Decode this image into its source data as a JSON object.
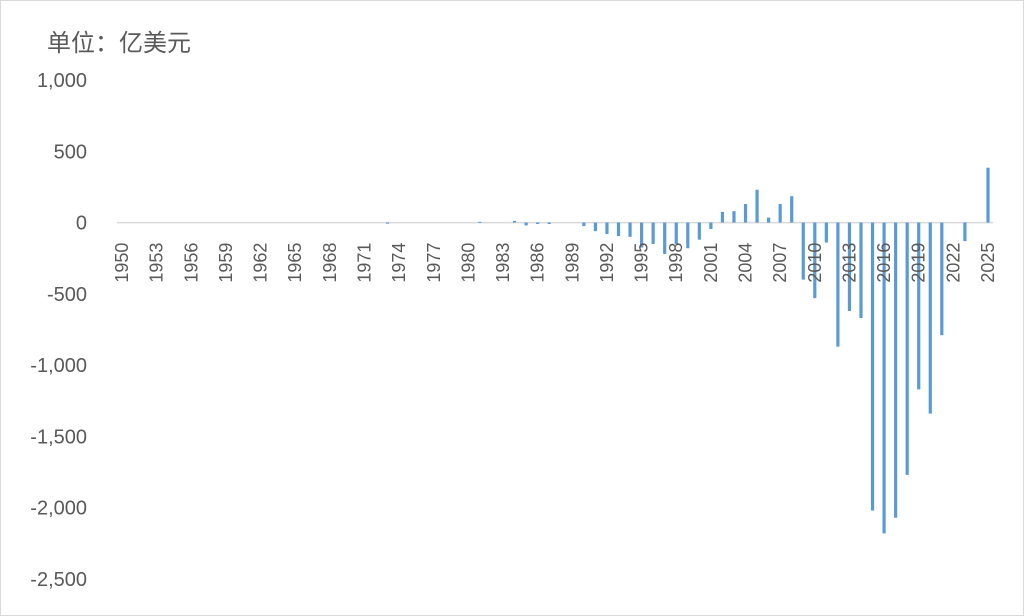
{
  "chart_data": {
    "type": "bar",
    "unit_label": "单位：亿美元",
    "xlabel": "",
    "ylabel": "",
    "ylim": [
      -2500,
      1000
    ],
    "y_ticks": [
      1000,
      500,
      0,
      -500,
      -1000,
      -1500,
      -2000,
      -2500
    ],
    "y_tick_labels": [
      "1,000",
      "500",
      "0",
      "-500",
      "-1,000",
      "-1,500",
      "-2,000",
      "-2,500"
    ],
    "x_tick_labels": [
      "1950",
      "1953",
      "1956",
      "1959",
      "1962",
      "1965",
      "1968",
      "1971",
      "1974",
      "1977",
      "1980",
      "1983",
      "1986",
      "1989",
      "1992",
      "1995",
      "1998",
      "2001",
      "2004",
      "2007",
      "2010",
      "2013",
      "2016",
      "2019",
      "2022",
      "2025"
    ],
    "grid": false,
    "legend": "none",
    "bar_color": "#5b9bd5",
    "categories": [
      1950,
      1951,
      1952,
      1953,
      1954,
      1955,
      1956,
      1957,
      1958,
      1959,
      1960,
      1961,
      1962,
      1963,
      1964,
      1965,
      1966,
      1967,
      1968,
      1969,
      1970,
      1971,
      1972,
      1973,
      1974,
      1975,
      1976,
      1977,
      1978,
      1979,
      1980,
      1981,
      1982,
      1983,
      1984,
      1985,
      1986,
      1987,
      1988,
      1989,
      1990,
      1991,
      1992,
      1993,
      1994,
      1995,
      1996,
      1997,
      1998,
      1999,
      2000,
      2001,
      2002,
      2003,
      2004,
      2005,
      2006,
      2007,
      2008,
      2009,
      2010,
      2011,
      2012,
      2013,
      2014,
      2015,
      2016,
      2017,
      2018,
      2019,
      2020,
      2021,
      2022,
      2023,
      2024,
      2025
    ],
    "values": [
      0,
      0,
      0,
      0,
      0,
      0,
      0,
      0,
      0,
      0,
      0,
      0,
      0,
      0,
      0,
      0,
      0,
      0,
      0,
      0,
      0,
      0,
      0,
      -8,
      0,
      0,
      0,
      0,
      0,
      0,
      0,
      5,
      0,
      0,
      12,
      -20,
      -10,
      -10,
      0,
      0,
      -25,
      -60,
      -80,
      -95,
      -100,
      -175,
      -150,
      -220,
      -150,
      -180,
      -120,
      -45,
      75,
      80,
      130,
      230,
      35,
      130,
      185,
      -400,
      -530,
      -140,
      -870,
      -620,
      -670,
      -2020,
      -2180,
      -2070,
      -1770,
      -1170,
      -1340,
      -790,
      0,
      -130,
      0,
      385
    ]
  }
}
